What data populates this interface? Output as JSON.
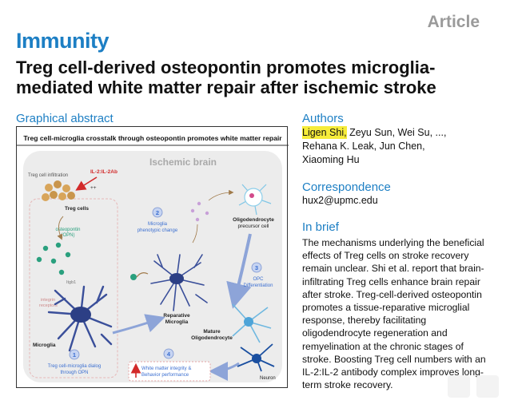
{
  "header": {
    "article_type": "Article",
    "journal": "Immunity",
    "title": "Treg cell-derived osteopontin promotes microglia-mediated white matter repair after ischemic stroke"
  },
  "graphical_abstract": {
    "heading": "Graphical abstract",
    "banner": "Treg cell-microglia crosstalk through osteopontin promotes white matter repair",
    "region": "Ischemic brain",
    "labels": {
      "treg_infiltration": "Treg cell infiltration",
      "il2": "IL-2:IL-2Ab",
      "plus": "++",
      "treg_cells": "Treg cells",
      "opn1": "osteopontin",
      "opn2": "(OPN)",
      "itgb1": "Itgb1",
      "integrin1": "integrin",
      "integrin2": "receptors",
      "microglia": "Microglia",
      "step1_num": "1",
      "step1_1": "Treg cell-microglia dialog",
      "step1_2": "through OPN",
      "step2_num": "2",
      "step2_1": "Microglia",
      "step2_2": "phenotypic change",
      "reparative1": "Reparative",
      "reparative2": "Microglia",
      "opc1": "Oligodendrocyte",
      "opc2": "precursor cell",
      "step3_num": "3",
      "step3_1": "OPC",
      "step3_2": "Differentiation",
      "mature1": "Mature",
      "mature2": "Oligodendrocyte",
      "step4_num": "4",
      "step4_1": "White matter integrity &",
      "step4_2": "Behavior performance",
      "neuron": "Neuron"
    },
    "colors": {
      "accent_blue": "#3b6fd1",
      "treg": "#d8a55a",
      "opn": "#2aa07e",
      "arrow_red": "#d22a2a",
      "brain_bg": "#ececec"
    }
  },
  "authors": {
    "heading": "Authors",
    "first": "Ligen Shi,",
    "rest_line1": " Zeyu Sun, Wei Su, ...,",
    "line2": "Rehana K. Leak, Jun Chen,",
    "line3": "Xiaoming Hu"
  },
  "correspondence": {
    "heading": "Correspondence",
    "email": "hux2@upmc.edu"
  },
  "in_brief": {
    "heading": "In brief",
    "text": "The mechanisms underlying the beneficial effects of Treg cells on stroke recovery remain unclear. Shi et al. report that brain-infiltrating Treg cells enhance brain repair after stroke. Treg-cell-derived osteopontin promotes a tissue-reparative microglial response, thereby facilitating oligodendrocyte regeneration and remyelination at the chronic stages of stroke. Boosting Treg cell numbers with an IL-2:IL-2 antibody complex improves long-term stroke recovery."
  }
}
